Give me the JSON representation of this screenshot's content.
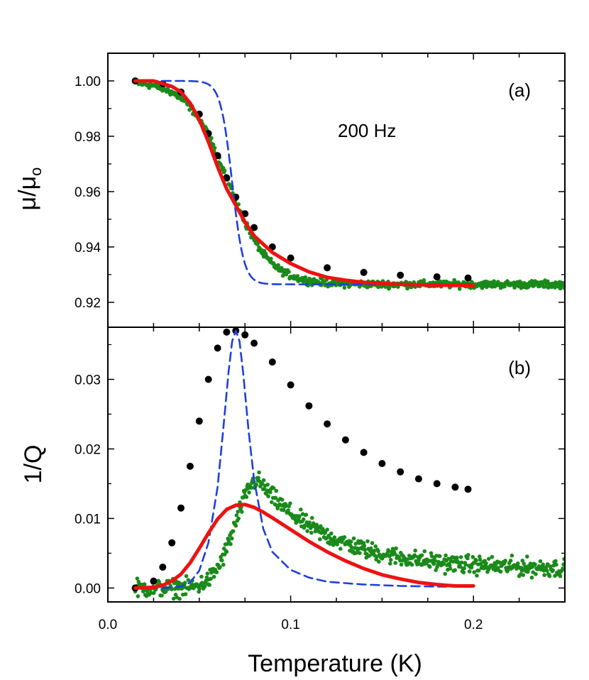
{
  "chart_data": [
    {
      "id": "a",
      "type": "line",
      "panel_label": "(a)",
      "annotation": "200 Hz",
      "ylabel": "μ/μ",
      "ylabel_subscript": "o",
      "xlim": [
        0.0,
        0.25
      ],
      "ylim": [
        0.911,
        1.01
      ],
      "yticks": [
        0.92,
        0.94,
        0.96,
        0.98,
        1.0
      ],
      "ytick_labels": [
        "0.92",
        "0.94",
        "0.96",
        "0.98",
        "1.00"
      ],
      "series": [
        {
          "name": "measured data",
          "style": "scatter",
          "color": "#1a8a1a",
          "model": {
            "kind": "sigmoid",
            "x_from": 0.015,
            "x_to": 0.25,
            "x0": 0.066,
            "w": 0.011,
            "top": 1.0,
            "bottom": 0.9265,
            "n": 650,
            "noise": 0.0011
          }
        },
        {
          "name": "black dotted model",
          "style": "dotted",
          "color": "#000000",
          "x": [
            0.015,
            0.03,
            0.04,
            0.05,
            0.055,
            0.06,
            0.065,
            0.07,
            0.075,
            0.08,
            0.09,
            0.1,
            0.12,
            0.14,
            0.16,
            0.18,
            0.197
          ],
          "y": [
            1.0,
            0.999,
            0.996,
            0.988,
            0.981,
            0.973,
            0.965,
            0.958,
            0.952,
            0.947,
            0.94,
            0.936,
            0.9325,
            0.9308,
            0.9298,
            0.9292,
            0.9288
          ]
        },
        {
          "name": "blue dashed model",
          "style": "dashed",
          "color": "#1f3fdc",
          "model": {
            "kind": "sigmoid",
            "x_from": 0.015,
            "x_to": 0.2,
            "x0": 0.068,
            "w": 0.0032,
            "top": 1.0,
            "bottom": 0.9265,
            "n": 220
          }
        },
        {
          "name": "red solid fit",
          "style": "solid",
          "color": "#ee1111",
          "x": [
            0.015,
            0.025,
            0.03,
            0.035,
            0.04,
            0.045,
            0.05,
            0.055,
            0.06,
            0.065,
            0.07,
            0.075,
            0.08,
            0.09,
            0.1,
            0.11,
            0.12,
            0.13,
            0.14,
            0.16,
            0.18,
            0.2
          ],
          "y": [
            1.0,
            1.0,
            0.999,
            0.998,
            0.996,
            0.992,
            0.986,
            0.978,
            0.969,
            0.961,
            0.955,
            0.949,
            0.944,
            0.938,
            0.934,
            0.931,
            0.929,
            0.928,
            0.9272,
            0.9265,
            0.9262,
            0.926
          ]
        }
      ]
    },
    {
      "id": "b",
      "type": "line",
      "panel_label": "(b)",
      "xlabel": "Temperature (K)",
      "ylabel": "1/Q",
      "xlim": [
        0.0,
        0.25
      ],
      "ylim": [
        -0.002,
        0.0375
      ],
      "xticks": [
        0.0,
        0.1,
        0.2
      ],
      "xtick_labels": [
        "0.0",
        "0.1",
        "0.2"
      ],
      "yticks": [
        0.0,
        0.01,
        0.02,
        0.03
      ],
      "ytick_labels": [
        "0.00",
        "0.01",
        "0.02",
        "0.03"
      ],
      "series": [
        {
          "name": "measured data",
          "style": "scatter",
          "color": "#1a8a1a",
          "model": {
            "kind": "peak",
            "x_from": 0.015,
            "x_to": 0.25,
            "peak_x": 0.082,
            "peak_y": 0.0155,
            "rise_w": 0.012,
            "tail": [
              0.015,
              0.0027,
              0.039
            ],
            "n": 650,
            "noise": 0.0011
          }
        },
        {
          "name": "black dotted model",
          "style": "dotted",
          "color": "#000000",
          "x": [
            0.015,
            0.025,
            0.03,
            0.035,
            0.04,
            0.045,
            0.05,
            0.055,
            0.06,
            0.065,
            0.07,
            0.075,
            0.08,
            0.09,
            0.1,
            0.11,
            0.12,
            0.13,
            0.14,
            0.15,
            0.16,
            0.17,
            0.18,
            0.19,
            0.197
          ],
          "y": [
            0.0,
            0.001,
            0.003,
            0.0065,
            0.0115,
            0.0175,
            0.024,
            0.03,
            0.0345,
            0.0368,
            0.037,
            0.0364,
            0.0352,
            0.0325,
            0.0292,
            0.0262,
            0.0236,
            0.0213,
            0.0195,
            0.0179,
            0.0167,
            0.0157,
            0.015,
            0.0145,
            0.0142
          ]
        },
        {
          "name": "blue dashed model",
          "style": "dashed",
          "color": "#1f3fdc",
          "x": [
            0.015,
            0.03,
            0.04,
            0.045,
            0.05,
            0.055,
            0.06,
            0.063,
            0.066,
            0.068,
            0.07,
            0.072,
            0.074,
            0.077,
            0.08,
            0.085,
            0.09,
            0.1,
            0.11,
            0.12,
            0.14,
            0.16,
            0.18,
            0.2
          ],
          "y": [
            0.0,
            0.0,
            0.0002,
            0.0008,
            0.0025,
            0.0065,
            0.0145,
            0.0225,
            0.031,
            0.0355,
            0.037,
            0.0355,
            0.031,
            0.0225,
            0.0155,
            0.0085,
            0.0052,
            0.0026,
            0.0015,
            0.0009,
            0.0005,
            0.0003,
            0.0002,
            0.0002
          ]
        },
        {
          "name": "red solid fit",
          "style": "solid",
          "color": "#ee1111",
          "x": [
            0.015,
            0.025,
            0.03,
            0.035,
            0.04,
            0.045,
            0.05,
            0.055,
            0.06,
            0.065,
            0.07,
            0.075,
            0.08,
            0.085,
            0.09,
            0.1,
            0.11,
            0.12,
            0.13,
            0.14,
            0.15,
            0.16,
            0.17,
            0.18,
            0.19,
            0.2
          ],
          "y": [
            0.0,
            0.0001,
            0.0004,
            0.001,
            0.002,
            0.0036,
            0.0057,
            0.0079,
            0.0099,
            0.0113,
            0.0119,
            0.012,
            0.0116,
            0.0109,
            0.0101,
            0.0084,
            0.0067,
            0.0052,
            0.0039,
            0.0028,
            0.0019,
            0.0013,
            0.0008,
            0.0005,
            0.0003,
            0.0003
          ]
        }
      ]
    }
  ]
}
